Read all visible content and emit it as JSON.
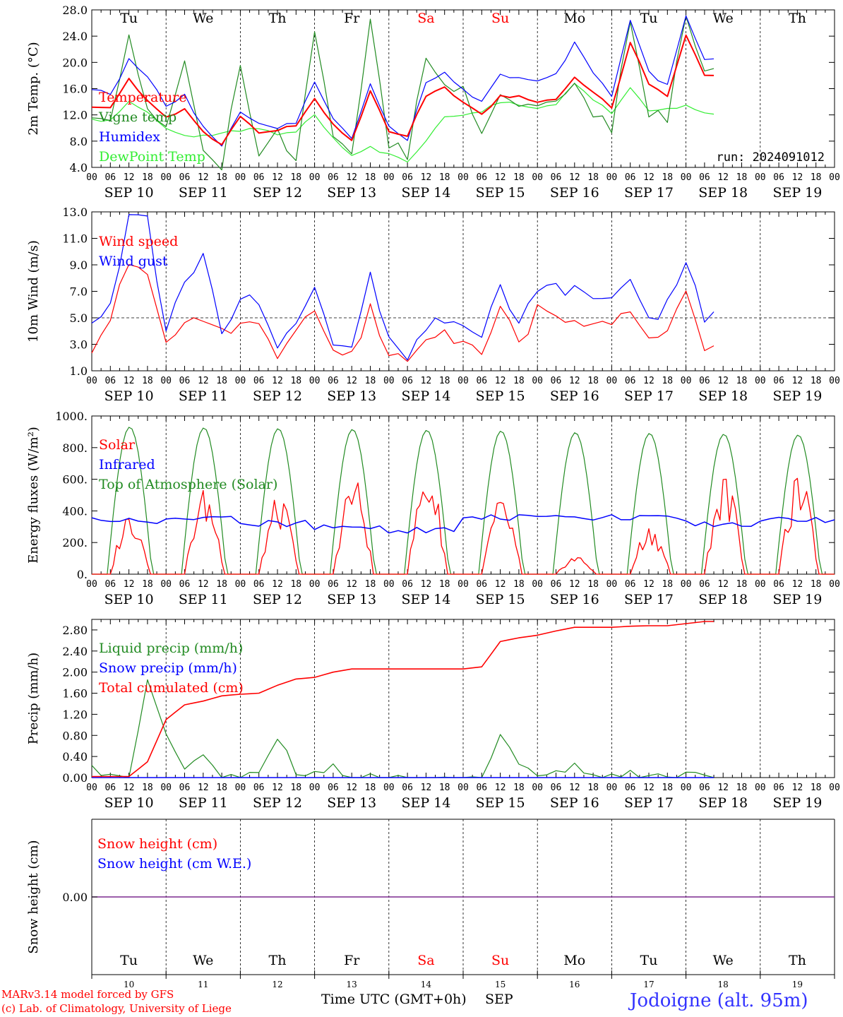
{
  "run_label": "run: 2024091012",
  "day_labels": [
    "Tu",
    "We",
    "Th",
    "Fr",
    "Sa",
    "Su",
    "Mo",
    "Tu",
    "We",
    "Th"
  ],
  "weekend_days": [
    "Sa",
    "Su"
  ],
  "date_labels": [
    "SEP 10",
    "SEP 11",
    "SEP 12",
    "SEP 13",
    "SEP 14",
    "SEP 15",
    "SEP 16",
    "SEP 17",
    "SEP 18",
    "SEP 19"
  ],
  "hour_ticks": [
    "00",
    "06",
    "12",
    "18"
  ],
  "bottom_day_numbers": [
    "10",
    "11",
    "12",
    "13",
    "14",
    "15",
    "16",
    "17",
    "18",
    "19"
  ],
  "footer": {
    "model_line": "MARv3.14 model forced by GFS",
    "copyright_line": "(c) Lab. of Climatology, University of Liege",
    "xlabel": "Time UTC (GMT+0h)",
    "month": "SEP",
    "station": "Jodoigne (alt. 95m)"
  },
  "colors": {
    "red": "#ff0000",
    "green": "#228b22",
    "blue": "#0000ff",
    "lightgreen": "#33ee33",
    "station": "#3333ff",
    "purple": "#7b2a8f"
  },
  "chart_data": [
    {
      "type": "line",
      "ylabel": "2m Temp. (°C)",
      "ylim": [
        4.0,
        28.0
      ],
      "yticks": [
        "4.0",
        "8.0",
        "12.0",
        "16.0",
        "20.0",
        "24.0",
        "28.0"
      ],
      "ytick_values": [
        4,
        8,
        12,
        16,
        20,
        24,
        28
      ],
      "x_hours": [
        0,
        6,
        12,
        18,
        24,
        30,
        36,
        42,
        48,
        54,
        60,
        66,
        72,
        78,
        84,
        90,
        96,
        102,
        108,
        114,
        120,
        126,
        132,
        138,
        144,
        150,
        156,
        162,
        168,
        174,
        180,
        186,
        192,
        198,
        204,
        210,
        216,
        222,
        228,
        234,
        240
      ],
      "series": [
        {
          "name": "Temperature",
          "color": "red",
          "values": [
            13.3,
            13.0,
            17.5,
            14.0,
            11.5,
            13.0,
            9.4,
            7.4,
            11.8,
            9.4,
            9.6,
            10.5,
            14.5,
            10.4,
            8.0,
            15.8,
            9.5,
            8.8,
            15.0,
            16.2,
            14.0,
            12.0,
            14.8,
            14.9,
            14.1,
            14.4,
            17.8,
            15.6,
            13.2,
            22.9,
            16.8,
            14.7,
            24.1,
            18.0,
            null,
            null,
            null,
            null,
            null,
            null,
            null
          ]
        },
        {
          "name": "Vigne temp",
          "color": "green",
          "values": [
            12.6,
            11.0,
            23.5,
            12.0,
            10.4,
            21.3,
            6.1,
            4.5,
            19.2,
            6.0,
            9.0,
            5.0,
            24.0,
            8.5,
            5.0,
            26.0,
            8.0,
            5.5,
            21.0,
            17.0,
            16.0,
            9.0,
            16.0,
            14.0,
            13.0,
            14.0,
            17.0,
            12.0,
            10.0,
            26.0,
            12.0,
            11.5,
            28.0,
            18.0,
            null,
            null,
            null,
            null,
            null,
            null,
            null
          ]
        },
        {
          "name": "Humidex",
          "color": "blue",
          "values": [
            16.0,
            15.0,
            20.5,
            18.0,
            13.5,
            15.0,
            10.0,
            7.5,
            12.5,
            10.5,
            10.0,
            10.8,
            17.0,
            11.5,
            8.5,
            16.5,
            10.0,
            8.3,
            17.0,
            18.5,
            16.0,
            14.0,
            18.0,
            17.5,
            17.0,
            18.0,
            23.2,
            18.5,
            15.0,
            26.2,
            18.5,
            16.5,
            27.0,
            20.5,
            null,
            null,
            null,
            null,
            null,
            null,
            null
          ]
        },
        {
          "name": "DewPoint Temp",
          "color": "lightgreen",
          "values": [
            11.5,
            11.0,
            14.0,
            12.5,
            9.8,
            9.0,
            8.8,
            9.2,
            9.6,
            10.0,
            9.0,
            9.5,
            12.0,
            8.5,
            6.0,
            7.0,
            6.0,
            5.0,
            8.0,
            11.5,
            12.0,
            12.5,
            14.0,
            13.5,
            13.0,
            13.5,
            16.8,
            14.5,
            12.0,
            16.0,
            12.5,
            12.8,
            13.5,
            12.2,
            null,
            null,
            null,
            null,
            null,
            null,
            null
          ]
        }
      ]
    },
    {
      "type": "line",
      "ylabel": "10m Wind (m/s)",
      "ylim": [
        1.0,
        13.0
      ],
      "yticks": [
        "1.0",
        "3.0",
        "5.0",
        "7.0",
        "9.0",
        "11.0",
        "13.0"
      ],
      "ytick_values": [
        1,
        3,
        5,
        7,
        9,
        11,
        13
      ],
      "reference_line": 5.0,
      "x_hours": [
        0,
        6,
        12,
        18,
        24,
        30,
        36,
        42,
        48,
        54,
        60,
        66,
        72,
        78,
        84,
        90,
        96,
        102,
        108,
        114,
        120,
        126,
        132,
        138,
        144,
        150,
        156,
        162,
        168,
        174,
        180,
        186,
        192,
        198,
        204,
        210,
        216,
        222,
        228,
        234,
        240
      ],
      "series": [
        {
          "name": "Wind speed",
          "color": "red",
          "values": [
            2.8,
            4.5,
            9.5,
            8.0,
            3.0,
            5.2,
            5.0,
            4.0,
            4.5,
            4.2,
            2.0,
            3.5,
            5.5,
            3.0,
            2.5,
            5.5,
            2.0,
            1.6,
            3.0,
            3.5,
            3.0,
            2.0,
            5.5,
            3.0,
            5.5,
            5.0,
            4.5,
            5.0,
            4.2,
            6.0,
            3.0,
            4.5,
            7.0,
            3.1,
            null,
            null,
            null,
            null,
            null,
            null,
            null
          ]
        },
        {
          "name": "Wind gust",
          "color": "blue",
          "values": [
            4.8,
            6.0,
            12.8,
            12.4,
            3.8,
            7.5,
            9.8,
            4.0,
            6.5,
            6.0,
            3.0,
            4.2,
            7.5,
            3.5,
            3.2,
            8.0,
            3.0,
            2.1,
            4.0,
            5.0,
            4.0,
            3.0,
            7.5,
            4.5,
            7.5,
            7.0,
            7.0,
            7.0,
            6.0,
            8.5,
            4.5,
            6.0,
            9.3,
            5.0,
            null,
            null,
            null,
            null,
            null,
            null,
            null
          ]
        }
      ]
    },
    {
      "type": "line",
      "ylabel": "Energy fluxes (W/m²)",
      "ylim": [
        0,
        1000
      ],
      "yticks": [
        "0.",
        "200.",
        "400.",
        "600.",
        "800.",
        "1000."
      ],
      "ytick_values": [
        0,
        200,
        400,
        600,
        800,
        1000
      ],
      "series": [
        {
          "name": "Solar",
          "color": "red",
          "peaks": [
            420,
            550,
            500,
            640,
            690,
            490,
            120,
            320,
            640,
            640
          ]
        },
        {
          "name": "Infrared",
          "color": "blue",
          "values_daily": [
            340,
            350,
            320,
            300,
            280,
            360,
            360,
            360,
            320,
            340
          ]
        },
        {
          "name": "Top of Atmosphere (Solar)",
          "color": "green",
          "peaks": [
            930,
            925,
            920,
            915,
            910,
            905,
            895,
            890,
            885,
            880
          ]
        }
      ]
    },
    {
      "type": "line",
      "ylabel": "Precip (mm/h)",
      "ylim": [
        0.0,
        3.0
      ],
      "yticks": [
        "0.00",
        "0.40",
        "0.80",
        "1.20",
        "1.60",
        "2.00",
        "2.40",
        "2.80"
      ],
      "ytick_values": [
        0,
        0.4,
        0.8,
        1.2,
        1.6,
        2.0,
        2.4,
        2.8
      ],
      "x_hours": [
        0,
        6,
        12,
        18,
        24,
        30,
        36,
        42,
        48,
        54,
        60,
        66,
        72,
        78,
        84,
        90,
        96,
        102,
        108,
        114,
        120,
        126,
        132,
        138,
        144,
        150,
        156,
        162,
        168,
        174,
        180,
        186,
        192,
        198,
        204,
        210,
        216,
        222,
        228,
        234,
        240
      ],
      "series": [
        {
          "name": "Liquid precip (mm/h)",
          "color": "green",
          "values": [
            0.2,
            0.0,
            0.0,
            1.9,
            0.8,
            0.1,
            0.5,
            0.0,
            0.0,
            0.1,
            0.8,
            0.1,
            0.1,
            0.2,
            0.0,
            0.0,
            0.0,
            0.0,
            0.0,
            0.0,
            0.0,
            0.0,
            0.8,
            0.3,
            0.0,
            0.1,
            0.2,
            0.0,
            0.0,
            0.1,
            0.0,
            0.0,
            0.1,
            0.0,
            null,
            null,
            null,
            null,
            null,
            null,
            null
          ]
        },
        {
          "name": "Snow precip (mm/h)",
          "color": "blue",
          "values": [
            0,
            0,
            0,
            0,
            0,
            0,
            0,
            0,
            0,
            0,
            0,
            0,
            0,
            0,
            0,
            0,
            0,
            0,
            0,
            0,
            0,
            0,
            0,
            0,
            0,
            0,
            0,
            0,
            0,
            0,
            0,
            0,
            0,
            0,
            null,
            null,
            null,
            null,
            null,
            null,
            null
          ]
        },
        {
          "name": "Total cumulated (cm)",
          "color": "red",
          "values": [
            0.02,
            0.02,
            0.02,
            0.3,
            1.1,
            1.38,
            1.45,
            1.55,
            1.58,
            1.6,
            1.75,
            1.87,
            1.9,
            2.0,
            2.06,
            2.06,
            2.06,
            2.06,
            2.06,
            2.06,
            2.06,
            2.1,
            2.58,
            2.65,
            2.7,
            2.78,
            2.85,
            2.85,
            2.85,
            2.87,
            2.88,
            2.88,
            2.92,
            2.96,
            null,
            null,
            null,
            null,
            null,
            null,
            null
          ]
        }
      ]
    },
    {
      "type": "line",
      "ylabel": "Snow height (cm)",
      "yticks": [
        "0.00"
      ],
      "series": [
        {
          "name": "Snow height (cm)",
          "color": "red",
          "values": [
            0
          ]
        },
        {
          "name": "Snow height (cm W.E.)",
          "color": "blue",
          "values": [
            0
          ]
        }
      ]
    }
  ]
}
